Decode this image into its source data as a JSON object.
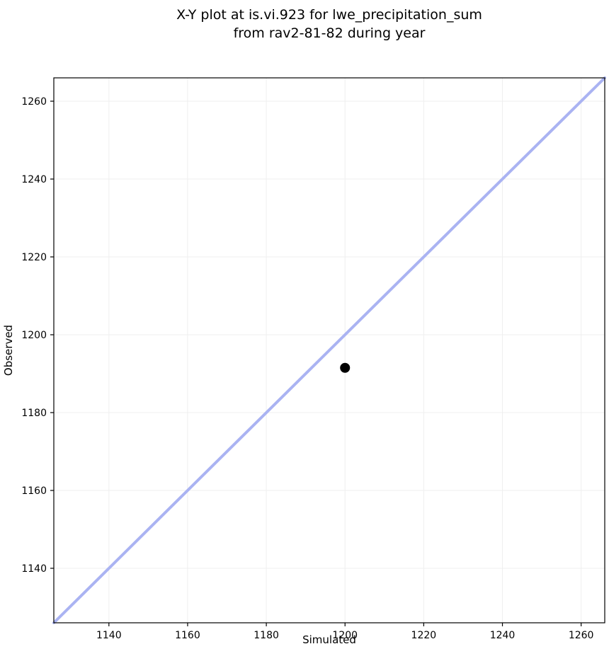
{
  "chart_data": {
    "type": "scatter",
    "title": "X-Y plot at is.vi.923 for lwe_precipitation_sum\nfrom rav2-81-82 during year",
    "xlabel": "Simulated",
    "ylabel": "Observed",
    "xlim": [
      1126,
      1266
    ],
    "ylim": [
      1126,
      1266
    ],
    "xticks": [
      1140,
      1160,
      1180,
      1200,
      1220,
      1240,
      1260
    ],
    "yticks": [
      1140,
      1160,
      1180,
      1200,
      1220,
      1240,
      1260
    ],
    "grid": true,
    "legend": "none",
    "points": [
      {
        "x": 1200,
        "y": 1191.5
      }
    ],
    "identity_line": {
      "x1": 1126,
      "y1": 1126,
      "x2": 1266,
      "y2": 1266
    },
    "colors": {
      "line": "#aab3f2",
      "marker": "#000000",
      "grid": "#efefef",
      "spine": "#000000",
      "text": "#000000",
      "background": "#ffffff"
    }
  }
}
